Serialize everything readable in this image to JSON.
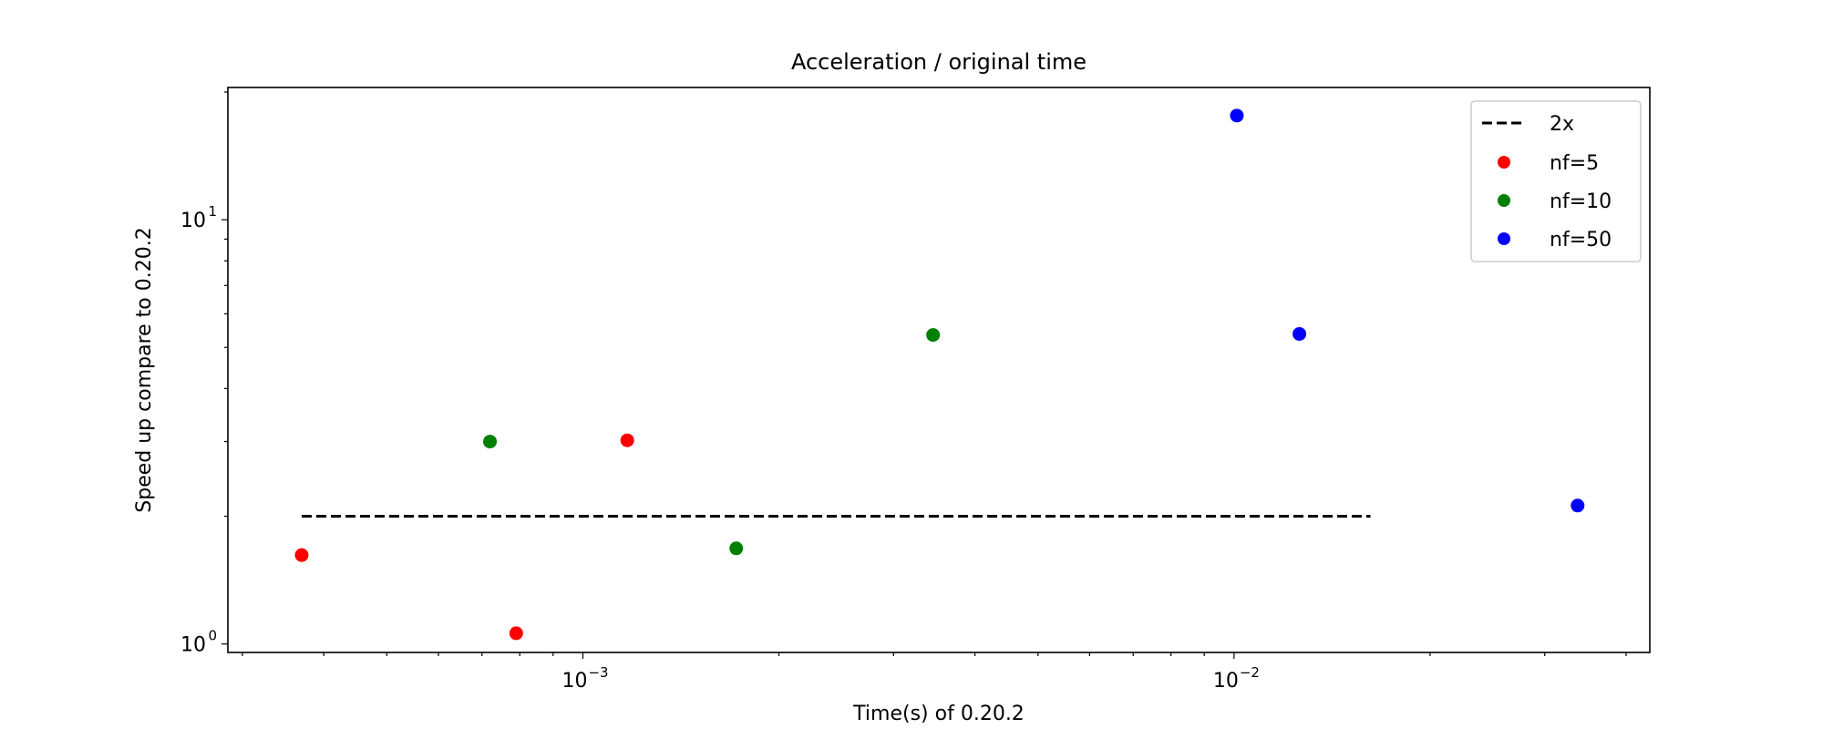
{
  "chart_data": {
    "type": "scatter",
    "title": "Acceleration / original time",
    "xlabel": "Time(s) of 0.20.2",
    "ylabel": "Speed up compare to 0.20.2",
    "xscale": "log",
    "yscale": "log",
    "xlim": [
      0.000285,
      0.0435
    ],
    "ylim": [
      0.955,
      20.5
    ],
    "x_ticks": [
      {
        "value": 0.001,
        "base": "10",
        "exp": "−3"
      },
      {
        "value": 0.01,
        "base": "10",
        "exp": "−2"
      }
    ],
    "y_ticks": [
      {
        "value": 1,
        "base": "10",
        "exp": "0"
      },
      {
        "value": 10,
        "base": "10",
        "exp": "1"
      }
    ],
    "grid": false,
    "legend_position": "top-right",
    "reference_line": {
      "name": "2x",
      "y": 2,
      "x_range": [
        0.00037,
        0.0162
      ],
      "style": "dashed",
      "color": "#000000"
    },
    "series": [
      {
        "name": "nf=5",
        "color": "#ff0000",
        "points": [
          [
            0.00037,
            1.62
          ],
          [
            0.00079,
            1.06
          ],
          [
            0.00117,
            3.02
          ]
        ]
      },
      {
        "name": "nf=10",
        "color": "#008000",
        "points": [
          [
            0.00072,
            3.0
          ],
          [
            0.00172,
            1.68
          ],
          [
            0.00345,
            5.35
          ]
        ]
      },
      {
        "name": "nf=50",
        "color": "#0000ff",
        "points": [
          [
            0.0101,
            17.6
          ],
          [
            0.0126,
            5.38
          ],
          [
            0.0337,
            2.12
          ]
        ]
      }
    ]
  }
}
